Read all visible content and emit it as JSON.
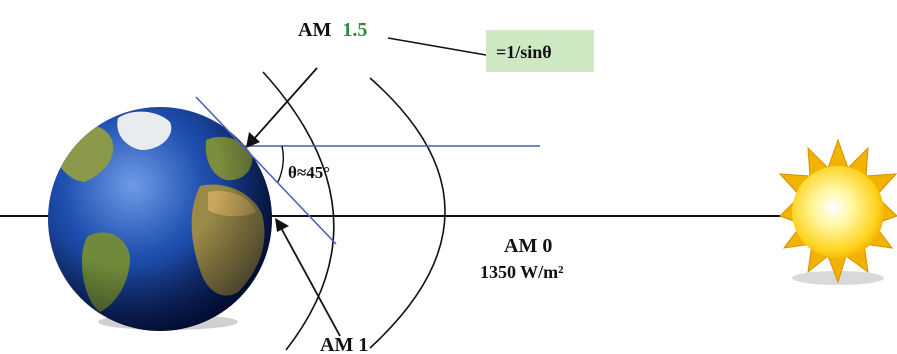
{
  "labels": {
    "am15_prefix": "AM",
    "am15_value": "1.5",
    "formula": "=1/sinθ",
    "angle": "θ≈45°",
    "am0": "AM 0",
    "am0_irradiance": "1350 W/m²",
    "am1": "AM 1"
  },
  "colors": {
    "am15_value": "#2e8b3a",
    "formula_box": "#cfe8c4",
    "ray_line": "#4060b0",
    "tangent_line": "#4a62b8",
    "sun_core": "#fff6a0",
    "sun_rays": "#f2b200",
    "ocean": "#1d4aa0",
    "land": "#7a8b3c"
  },
  "icons": {
    "earth": "earth-globe-icon",
    "sun": "sun-icon"
  }
}
